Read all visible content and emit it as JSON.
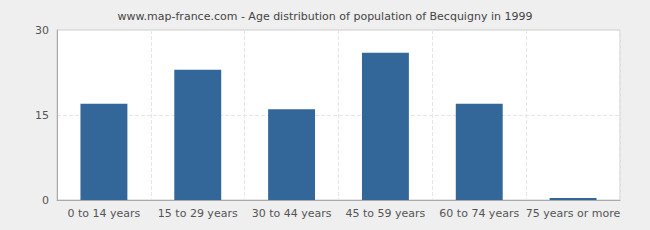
{
  "chart_data": {
    "type": "bar",
    "title": "www.map-france.com - Age distribution of population of Becquigny in 1999",
    "categories": [
      "0 to 14 years",
      "15 to 29 years",
      "30 to 44 years",
      "45 to 59 years",
      "60 to 74 years",
      "75 years or more"
    ],
    "values": [
      17,
      23,
      16,
      26,
      17,
      0
    ],
    "color": "#336699",
    "ylim": [
      0,
      30
    ],
    "yticks": [
      0,
      15,
      30
    ],
    "grid": true
  }
}
